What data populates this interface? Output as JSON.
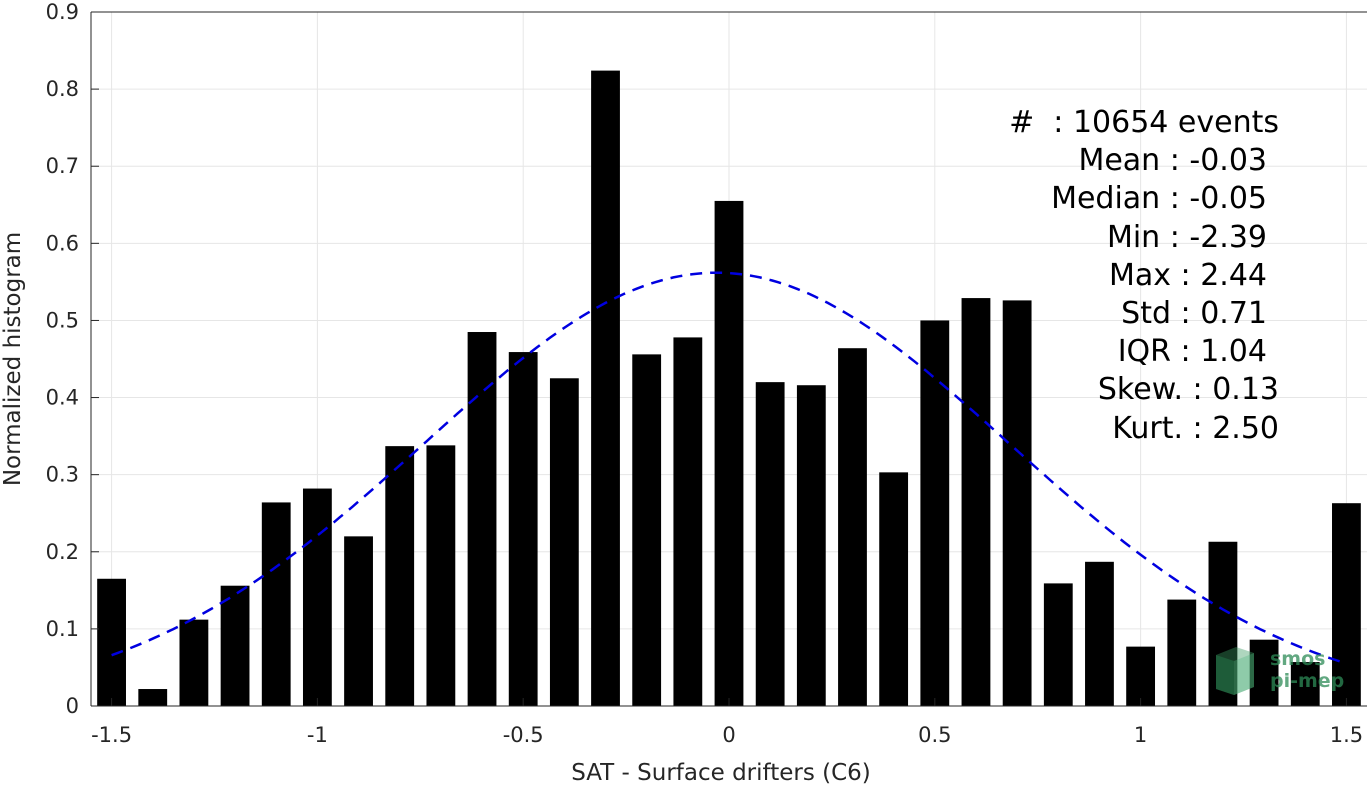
{
  "chart_data": {
    "type": "bar",
    "xlabel": "SAT - Surface drifters (C6)",
    "ylabel": "Normalized histogram",
    "xlim": [
      -1.55,
      1.55
    ],
    "ylim": [
      0,
      0.9
    ],
    "grid": true,
    "x_ticks": [
      "-1.5",
      "-1",
      "-0.5",
      "0",
      "0.5",
      "1",
      "1.5"
    ],
    "x_tick_values": [
      -1.5,
      -1,
      -0.5,
      0,
      0.5,
      1,
      1.5
    ],
    "y_ticks": [
      "0",
      "0.1",
      "0.2",
      "0.3",
      "0.4",
      "0.5",
      "0.6",
      "0.7",
      "0.8",
      "0.9"
    ],
    "y_tick_values": [
      0,
      0.1,
      0.2,
      0.3,
      0.4,
      0.5,
      0.6,
      0.7,
      0.8,
      0.9
    ],
    "bar_color": "#000000",
    "bins": [
      -1.5,
      -1.4,
      -1.3,
      -1.2,
      -1.1,
      -1.0,
      -0.9,
      -0.8,
      -0.7,
      -0.6,
      -0.5,
      -0.4,
      -0.3,
      -0.2,
      -0.1,
      0.0,
      0.1,
      0.2,
      0.3,
      0.4,
      0.5,
      0.6,
      0.7,
      0.8,
      0.9,
      1.0,
      1.1,
      1.2,
      1.3,
      1.4,
      1.5
    ],
    "values": [
      0.165,
      0.022,
      0.112,
      0.156,
      0.264,
      0.282,
      0.22,
      0.337,
      0.338,
      0.485,
      0.459,
      0.425,
      0.824,
      0.456,
      0.478,
      0.655,
      0.42,
      0.416,
      0.464,
      0.303,
      0.5,
      0.529,
      0.526,
      0.159,
      0.187,
      0.077,
      0.138,
      0.213,
      0.086,
      0.057,
      0.263
    ],
    "fit_curve": {
      "style": "dashed",
      "color": "#0000e0",
      "mean": -0.03,
      "std": 0.71,
      "x_range": [
        -1.5,
        1.5
      ]
    },
    "stats": [
      "#  : 10654 events",
      "Mean : -0.03",
      "Median : -0.05",
      "Min : -2.39",
      "Max : 2.44",
      "Std : 0.71",
      "IQR : 1.04",
      "Skew. : 0.13",
      "Kurt. : 2.50"
    ]
  },
  "logo": {
    "line1": "smos",
    "line2": "pi-mep",
    "color": "#2e8b57"
  }
}
